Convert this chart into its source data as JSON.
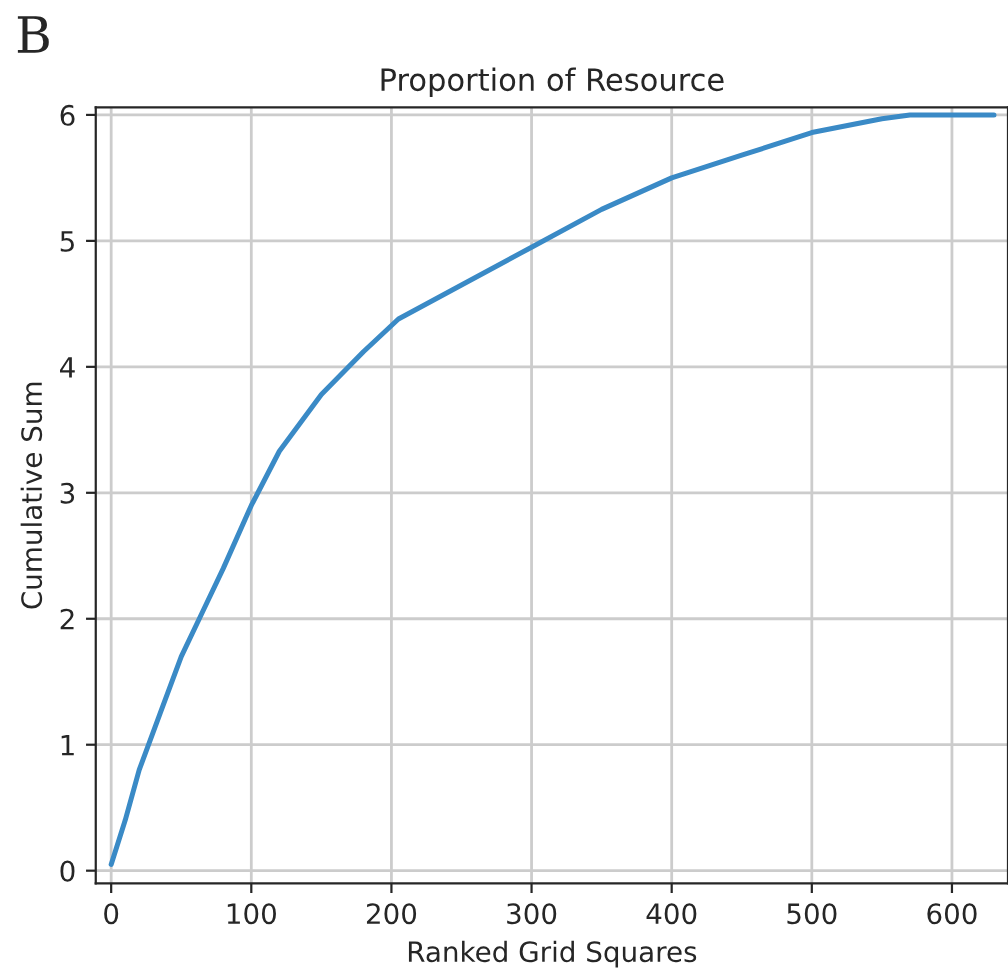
{
  "chart_data": {
    "type": "line",
    "title": "Proportion of Resource",
    "xlabel": "Ranked Grid Squares",
    "ylabel": "Cumulative Sum",
    "annotations": [
      "B"
    ],
    "x": [
      0,
      10,
      20,
      35,
      50,
      65,
      80,
      100,
      120,
      150,
      180,
      205,
      250,
      300,
      350,
      400,
      450,
      500,
      550,
      570,
      630
    ],
    "series": [
      {
        "color": "#3a8ac6",
        "values": [
          0.05,
          0.4,
          0.8,
          1.25,
          1.7,
          2.05,
          2.4,
          2.9,
          3.33,
          3.78,
          4.12,
          4.38,
          4.65,
          4.95,
          5.25,
          5.5,
          5.68,
          5.86,
          5.97,
          6.0,
          6.0
        ]
      }
    ],
    "xlim": [
      -11,
      640
    ],
    "ylim": [
      -0.1,
      6.06
    ],
    "xticks": [
      0,
      100,
      200,
      300,
      400,
      500,
      600
    ],
    "yticks": [
      0,
      1,
      2,
      3,
      4,
      5,
      6
    ],
    "grid": true
  }
}
